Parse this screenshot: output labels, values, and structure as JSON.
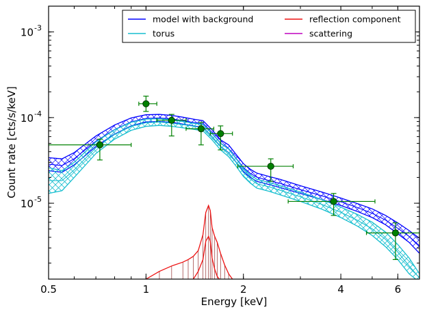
{
  "chart_data": {
    "type": "line",
    "title": "",
    "xlabel": "Energy [keV]",
    "ylabel": "Count rate [cts/s/keV]",
    "xscale": "log",
    "yscale": "log",
    "xlim": [
      0.5,
      7.0
    ],
    "ylim": [
      1.3e-06,
      0.002
    ],
    "xticks": [
      {
        "value": 0.5,
        "label": "0.5"
      },
      {
        "value": 1,
        "label": "1"
      },
      {
        "value": 2,
        "label": "2"
      },
      {
        "value": 4,
        "label": "4"
      },
      {
        "value": 6,
        "label": "6"
      }
    ],
    "yticks": [
      {
        "value": 1e-05,
        "label": "10",
        "exp": "-5"
      },
      {
        "value": 0.0001,
        "label": "10",
        "exp": "-4"
      },
      {
        "value": 0.001,
        "label": "10",
        "exp": "-3"
      }
    ],
    "legend": {
      "placement": "top-right",
      "entries": [
        {
          "name": "model with background",
          "color": "#0000ff"
        },
        {
          "name": "reflection component",
          "color": "#ee1111"
        },
        {
          "name": "torus",
          "color": "#17becf"
        },
        {
          "name": "scattering",
          "color": "#bf00bf"
        }
      ]
    },
    "series": [
      {
        "name": "model with background",
        "color": "#0000ff",
        "band": true,
        "x": [
          0.5,
          0.55,
          0.6,
          0.7,
          0.8,
          0.9,
          1.0,
          1.1,
          1.2,
          1.3,
          1.4,
          1.5,
          1.6,
          1.7,
          1.8,
          1.9,
          2.0,
          2.1,
          2.2,
          2.4,
          2.6,
          3.0,
          3.5,
          4.0,
          4.5,
          5.0,
          5.5,
          6.0,
          6.5,
          7.0
        ],
        "upper": [
          3.4e-05,
          3.3e-05,
          3.9e-05,
          6.1e-05,
          8.2e-05,
          9.9e-05,
          0.000108,
          0.000109,
          0.000106,
          0.000101,
          9.6e-05,
          9.2e-05,
          7.2e-05,
          5.5e-05,
          4.8e-05,
          3.7e-05,
          2.9e-05,
          2.5e-05,
          2.25e-05,
          2.05e-05,
          1.9e-05,
          1.6e-05,
          1.35e-05,
          1.15e-05,
          9.9e-06,
          8.6e-06,
          7.2e-06,
          5.9e-06,
          4.8e-06,
          3.9e-06
        ],
        "lower": [
          2.4e-05,
          2.3e-05,
          2.8e-05,
          4.6e-05,
          6.4e-05,
          8e-05,
          8.9e-05,
          9e-05,
          8.8e-05,
          8.4e-05,
          8e-05,
          7.7e-05,
          6e-05,
          4.6e-05,
          3.9e-05,
          3e-05,
          2.35e-05,
          2e-05,
          1.8e-05,
          1.65e-05,
          1.52e-05,
          1.3e-05,
          1.1e-05,
          9.4e-06,
          8e-06,
          6.8e-06,
          5.6e-06,
          4.4e-06,
          3.5e-06,
          2.6e-06
        ]
      },
      {
        "name": "torus",
        "color": "#17becf",
        "band": true,
        "x": [
          0.5,
          0.55,
          0.6,
          0.7,
          0.8,
          0.9,
          1.0,
          1.1,
          1.2,
          1.3,
          1.4,
          1.5,
          1.6,
          1.7,
          1.8,
          1.9,
          2.0,
          2.1,
          2.2,
          2.4,
          2.6,
          3.0,
          3.5,
          4.0,
          4.5,
          5.0,
          5.5,
          6.0,
          6.5,
          7.0
        ],
        "upper": [
          2.6e-05,
          2.4e-05,
          3e-05,
          5.2e-05,
          7.2e-05,
          8.8e-05,
          9.6e-05,
          9.7e-05,
          9.4e-05,
          9e-05,
          8.6e-05,
          8.3e-05,
          6.5e-05,
          5e-05,
          4.3e-05,
          3.3e-05,
          2.55e-05,
          2.15e-05,
          1.9e-05,
          1.75e-05,
          1.6e-05,
          1.35e-05,
          1.1e-05,
          9e-06,
          7.4e-06,
          6e-06,
          4.6e-06,
          3.3e-06,
          2.3e-06,
          1.5e-06
        ],
        "lower": [
          1.3e-05,
          1.4e-05,
          2e-05,
          3.8e-05,
          5.6e-05,
          7.1e-05,
          7.9e-05,
          8.1e-05,
          7.9e-05,
          7.6e-05,
          7.3e-05,
          7e-05,
          5.5e-05,
          4.2e-05,
          3.5e-05,
          2.7e-05,
          2.05e-05,
          1.72e-05,
          1.5e-05,
          1.38e-05,
          1.25e-05,
          1.05e-05,
          8.5e-06,
          6.8e-06,
          5.4e-06,
          4.2e-06,
          3.1e-06,
          2.2e-06,
          1.5e-06,
          1.2e-06
        ]
      },
      {
        "name": "reflection component",
        "color": "#ee1111",
        "x": [
          1.0,
          1.1,
          1.2,
          1.3,
          1.35,
          1.4,
          1.45,
          1.5,
          1.53,
          1.56,
          1.58,
          1.6,
          1.63,
          1.66,
          1.7,
          1.75,
          1.8,
          1.85
        ],
        "upper": [
          1.3e-06,
          1.6e-06,
          1.85e-06,
          2.05e-06,
          2.2e-06,
          2.4e-06,
          2.8e-06,
          4.3e-06,
          7.8e-06,
          9.4e-06,
          8.2e-06,
          5.2e-06,
          4.1e-06,
          3.5e-06,
          2.6e-06,
          1.9e-06,
          1.5e-06,
          1.3e-06
        ],
        "lower": [
          1.2e-06,
          1.2e-06,
          1.2e-06,
          1.2e-06,
          1.2e-06,
          1.3e-06,
          1.6e-06,
          2.2e-06,
          3.6e-06,
          4.1e-06,
          3.6e-06,
          2.3e-06,
          1.7e-06,
          1.4e-06,
          1.25e-06,
          1.2e-06,
          1.2e-06,
          1.2e-06
        ]
      },
      {
        "name": "scattering",
        "color": "#bf00bf",
        "x": [],
        "y": []
      }
    ],
    "data_points": {
      "color": "#008000",
      "points": [
        {
          "x": 0.72,
          "y": 4.8e-05,
          "xerr": [
            0.5,
            0.9
          ],
          "yerr": [
            3.2e-05,
            5.6e-05
          ]
        },
        {
          "x": 1.0,
          "y": 0.000145,
          "xerr": [
            0.95,
            1.08
          ],
          "yerr": [
            0.000118,
            0.000178
          ]
        },
        {
          "x": 1.2,
          "y": 9.3e-05,
          "xerr": [
            1.08,
            1.33
          ],
          "yerr": [
            6.1e-05,
            0.000109
          ]
        },
        {
          "x": 1.48,
          "y": 7.4e-05,
          "xerr": [
            1.33,
            1.62
          ],
          "yerr": [
            4.8e-05,
            8.8e-05
          ]
        },
        {
          "x": 1.7,
          "y": 6.5e-05,
          "xerr": [
            1.58,
            1.85
          ],
          "yerr": [
            4.2e-05,
            8e-05
          ]
        },
        {
          "x": 2.43,
          "y": 2.7e-05,
          "xerr": [
            1.92,
            2.85
          ],
          "yerr": [
            1.8e-05,
            3.3e-05
          ]
        },
        {
          "x": 3.8,
          "y": 1.05e-05,
          "xerr": [
            2.75,
            5.1
          ],
          "yerr": [
            7.2e-06,
            1.3e-05
          ]
        },
        {
          "x": 5.9,
          "y": 4.5e-06,
          "xerr": [
            4.8,
            7.0
          ],
          "yerr": [
            2.2e-06,
            5.9e-06
          ]
        }
      ]
    }
  }
}
